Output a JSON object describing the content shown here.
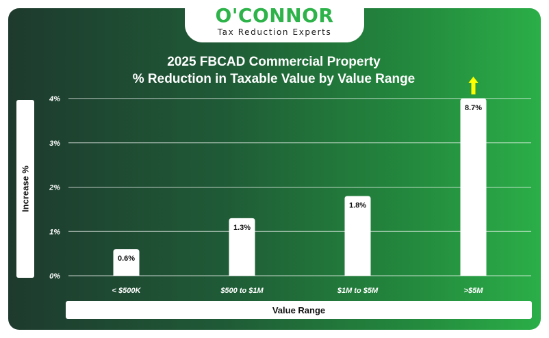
{
  "brand": {
    "name": "O'CONNOR",
    "tagline": "Tax Reduction Experts"
  },
  "chart_data": {
    "type": "bar",
    "title": "2025 FBCAD Commercial Property",
    "subtitle": "% Reduction in Taxable Value by Value Range",
    "xlabel": "Value Range",
    "ylabel": "Increase %",
    "categories": [
      "< $500K",
      "$500 to $1M",
      "$1M to $5M",
      ">$5M"
    ],
    "values": [
      0.6,
      1.3,
      1.8,
      8.7
    ],
    "data_labels": [
      "0.6%",
      "1.3%",
      "1.8%",
      "8.7%"
    ],
    "ylim": [
      0,
      4
    ],
    "yticks": [
      0,
      1,
      2,
      3,
      4
    ],
    "ytick_labels": [
      "0%",
      "1%",
      "2%",
      "3%",
      "4%"
    ],
    "grid": true,
    "annotations": [
      {
        "category": ">$5M",
        "symbol": "up-arrow",
        "meaning": "value exceeds axis maximum"
      }
    ],
    "colors": {
      "bar": "#ffffff",
      "arrow": "#ffff00",
      "grid": "#ffffff"
    }
  }
}
